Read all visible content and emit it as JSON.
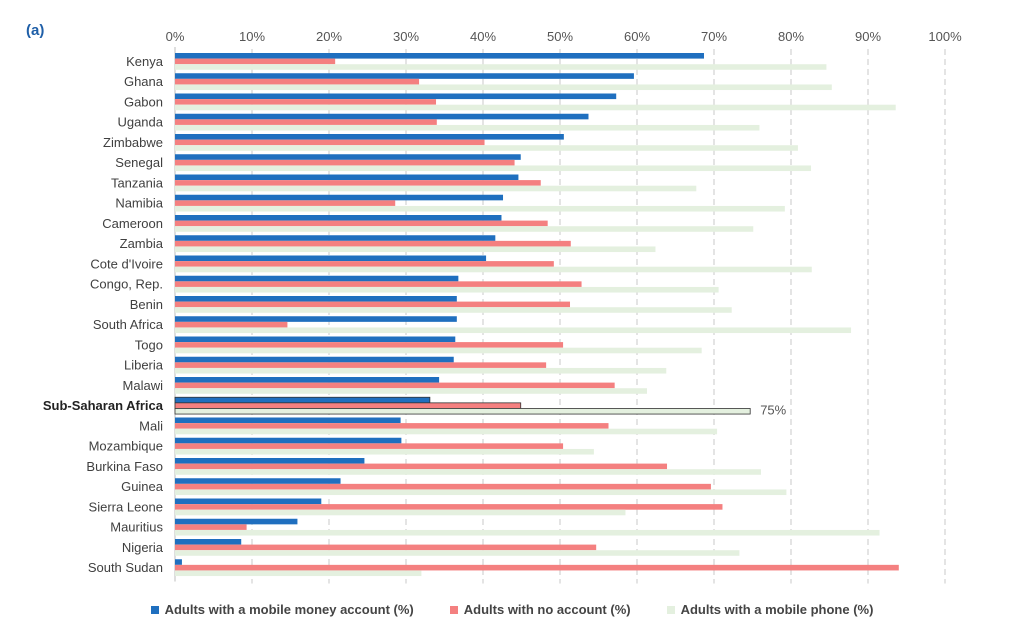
{
  "panel_label": "(a)",
  "chart_data": {
    "type": "bar",
    "orientation": "horizontal",
    "xlim": [
      0,
      100
    ],
    "x_ticks": [
      "0%",
      "10%",
      "20%",
      "30%",
      "40%",
      "50%",
      "60%",
      "70%",
      "80%",
      "90%",
      "100%"
    ],
    "x_axis_position": "top",
    "grid": "vertical-dashed",
    "legend_position": "bottom",
    "categories": [
      "Kenya",
      "Ghana",
      "Gabon",
      "Uganda",
      "Zimbabwe",
      "Senegal",
      "Tanzania",
      "Namibia",
      "Cameroon",
      "Zambia",
      "Cote d'Ivoire",
      "Congo, Rep.",
      "Benin",
      "South Africa",
      "Togo",
      "Liberia",
      "Malawi",
      "Sub-Saharan Africa",
      "Mali",
      "Mozambique",
      "Burkina Faso",
      "Guinea",
      "Sierra Leone",
      "Mauritius",
      "Nigeria",
      "South Sudan"
    ],
    "highlight_category": "Sub-Saharan Africa",
    "series": [
      {
        "name": "Adults with a mobile money account (%)",
        "color": "#1f6fbf",
        "values": [
          68.7,
          59.6,
          57.3,
          53.7,
          50.5,
          44.9,
          44.6,
          42.6,
          42.4,
          41.6,
          40.4,
          36.8,
          36.6,
          36.6,
          36.4,
          36.2,
          34.3,
          33.1,
          29.3,
          29.4,
          24.6,
          21.5,
          19.0,
          15.9,
          8.6,
          0.9
        ]
      },
      {
        "name": "Adults with no account (%)",
        "color": "#f48080",
        "values": [
          20.8,
          31.7,
          33.9,
          34.0,
          40.2,
          44.1,
          47.5,
          28.6,
          48.4,
          51.4,
          49.2,
          52.8,
          51.3,
          14.6,
          50.4,
          48.2,
          57.1,
          44.9,
          56.3,
          50.4,
          63.9,
          69.6,
          71.1,
          9.3,
          54.7,
          94.0
        ]
      },
      {
        "name": "Adults with a mobile phone (%)",
        "color": "#e4f0df",
        "values": [
          84.6,
          85.3,
          93.6,
          75.9,
          80.9,
          82.6,
          67.7,
          79.2,
          75.1,
          62.4,
          82.7,
          70.6,
          72.3,
          87.8,
          68.4,
          63.8,
          61.3,
          74.7,
          70.4,
          54.4,
          76.1,
          79.4,
          58.5,
          91.5,
          73.3,
          32.0
        ]
      }
    ],
    "annotation": "75%"
  }
}
